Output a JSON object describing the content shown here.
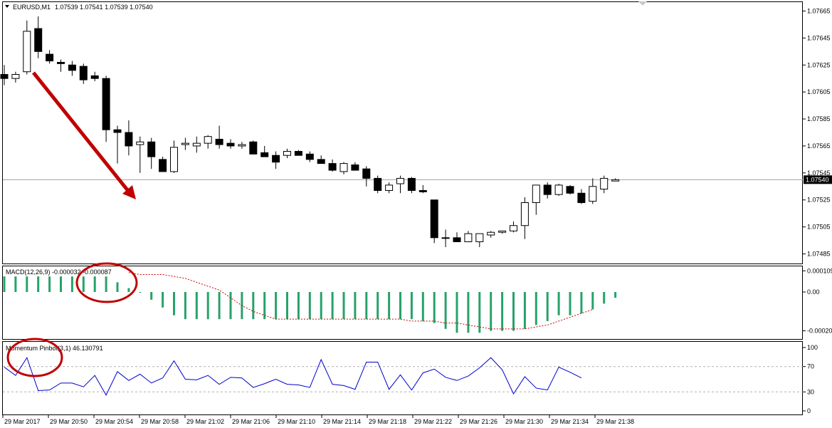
{
  "chart_data": [
    {
      "type": "candlestick",
      "header": {
        "symbol": "EURUSD,M1",
        "ohlc": "1.07539 1.07541 1.07539 1.07540"
      },
      "y_ticks": [
        "1.07665",
        "1.07645",
        "1.07625",
        "1.07605",
        "1.07585",
        "1.07565",
        "1.07545",
        "1.07525",
        "1.07505",
        "1.07485"
      ],
      "y_range": [
        1.0748,
        1.0767
      ],
      "current_price": 1.0754,
      "current_price_label": "1.07540",
      "candles": [
        {
          "o": 1.07618,
          "h": 1.07625,
          "l": 1.0761,
          "c": 1.07615
        },
        {
          "o": 1.07615,
          "h": 1.0762,
          "l": 1.07612,
          "c": 1.07618
        },
        {
          "o": 1.0762,
          "h": 1.07658,
          "l": 1.07618,
          "c": 1.0765
        },
        {
          "o": 1.07652,
          "h": 1.07661,
          "l": 1.0763,
          "c": 1.07635
        },
        {
          "o": 1.07633,
          "h": 1.07636,
          "l": 1.07626,
          "c": 1.07628
        },
        {
          "o": 1.07627,
          "h": 1.07629,
          "l": 1.0762,
          "c": 1.07626
        },
        {
          "o": 1.07625,
          "h": 1.07628,
          "l": 1.07617,
          "c": 1.07621
        },
        {
          "o": 1.07624,
          "h": 1.07626,
          "l": 1.07611,
          "c": 1.07614
        },
        {
          "o": 1.07617,
          "h": 1.0762,
          "l": 1.07613,
          "c": 1.07615
        },
        {
          "o": 1.07615,
          "h": 1.07617,
          "l": 1.07568,
          "c": 1.07577
        },
        {
          "o": 1.07577,
          "h": 1.0758,
          "l": 1.07552,
          "c": 1.07575
        },
        {
          "o": 1.07575,
          "h": 1.07584,
          "l": 1.07558,
          "c": 1.07565
        },
        {
          "o": 1.07566,
          "h": 1.07572,
          "l": 1.07545,
          "c": 1.07568
        },
        {
          "o": 1.07568,
          "h": 1.07571,
          "l": 1.07548,
          "c": 1.07557
        },
        {
          "o": 1.07555,
          "h": 1.07557,
          "l": 1.07546,
          "c": 1.07546
        },
        {
          "o": 1.07546,
          "h": 1.07569,
          "l": 1.07545,
          "c": 1.07564
        },
        {
          "o": 1.07566,
          "h": 1.07571,
          "l": 1.07562,
          "c": 1.07567
        },
        {
          "o": 1.07565,
          "h": 1.07572,
          "l": 1.0756,
          "c": 1.07567
        },
        {
          "o": 1.07567,
          "h": 1.07573,
          "l": 1.07563,
          "c": 1.07572
        },
        {
          "o": 1.0757,
          "h": 1.0758,
          "l": 1.07563,
          "c": 1.07566
        },
        {
          "o": 1.07567,
          "h": 1.0757,
          "l": 1.07563,
          "c": 1.07565
        },
        {
          "o": 1.07565,
          "h": 1.07568,
          "l": 1.07563,
          "c": 1.07566
        },
        {
          "o": 1.07568,
          "h": 1.07569,
          "l": 1.07559,
          "c": 1.07559
        },
        {
          "o": 1.0756,
          "h": 1.07565,
          "l": 1.07557,
          "c": 1.07557
        },
        {
          "o": 1.07558,
          "h": 1.07561,
          "l": 1.07548,
          "c": 1.07553
        },
        {
          "o": 1.07558,
          "h": 1.07563,
          "l": 1.07556,
          "c": 1.07561
        },
        {
          "o": 1.07561,
          "h": 1.07562,
          "l": 1.07558,
          "c": 1.07558
        },
        {
          "o": 1.07559,
          "h": 1.07561,
          "l": 1.07553,
          "c": 1.07555
        },
        {
          "o": 1.07555,
          "h": 1.07558,
          "l": 1.07552,
          "c": 1.07552
        },
        {
          "o": 1.07552,
          "h": 1.07555,
          "l": 1.07546,
          "c": 1.07547
        },
        {
          "o": 1.07546,
          "h": 1.07553,
          "l": 1.07544,
          "c": 1.07552
        },
        {
          "o": 1.07551,
          "h": 1.07553,
          "l": 1.07547,
          "c": 1.07547
        },
        {
          "o": 1.07548,
          "h": 1.0755,
          "l": 1.07535,
          "c": 1.07541
        },
        {
          "o": 1.07541,
          "h": 1.07543,
          "l": 1.0753,
          "c": 1.07532
        },
        {
          "o": 1.07532,
          "h": 1.07538,
          "l": 1.0753,
          "c": 1.07536
        },
        {
          "o": 1.07537,
          "h": 1.07543,
          "l": 1.0753,
          "c": 1.07541
        },
        {
          "o": 1.07541,
          "h": 1.07542,
          "l": 1.0753,
          "c": 1.07532
        },
        {
          "o": 1.07532,
          "h": 1.07536,
          "l": 1.0753,
          "c": 1.07531
        },
        {
          "o": 1.07525,
          "h": 1.07525,
          "l": 1.07493,
          "c": 1.07497
        },
        {
          "o": 1.07497,
          "h": 1.07503,
          "l": 1.0749,
          "c": 1.07497
        },
        {
          "o": 1.07497,
          "h": 1.07501,
          "l": 1.07494,
          "c": 1.07494
        },
        {
          "o": 1.07494,
          "h": 1.07502,
          "l": 1.07494,
          "c": 1.075
        },
        {
          "o": 1.07494,
          "h": 1.075,
          "l": 1.0749,
          "c": 1.075
        },
        {
          "o": 1.07499,
          "h": 1.07502,
          "l": 1.07497,
          "c": 1.07501
        },
        {
          "o": 1.07501,
          "h": 1.07502,
          "l": 1.075,
          "c": 1.07502
        },
        {
          "o": 1.07502,
          "h": 1.07509,
          "l": 1.07501,
          "c": 1.07506
        },
        {
          "o": 1.07506,
          "h": 1.07527,
          "l": 1.07496,
          "c": 1.07523
        },
        {
          "o": 1.07523,
          "h": 1.07536,
          "l": 1.07514,
          "c": 1.07536
        },
        {
          "o": 1.07536,
          "h": 1.07538,
          "l": 1.07526,
          "c": 1.07529
        },
        {
          "o": 1.07529,
          "h": 1.07537,
          "l": 1.07528,
          "c": 1.07536
        },
        {
          "o": 1.07535,
          "h": 1.07536,
          "l": 1.07529,
          "c": 1.0753
        },
        {
          "o": 1.0753,
          "h": 1.07533,
          "l": 1.07522,
          "c": 1.07523
        },
        {
          "o": 1.07524,
          "h": 1.07541,
          "l": 1.07522,
          "c": 1.07535
        },
        {
          "o": 1.07533,
          "h": 1.07543,
          "l": 1.0753,
          "c": 1.07541
        },
        {
          "o": 1.07539,
          "h": 1.07541,
          "l": 1.07539,
          "c": 1.0754
        }
      ]
    },
    {
      "type": "bar",
      "legend": "MACD(12,26,9) -0.000032 -0.000087",
      "y_ticks": [
        "0.000109",
        "0.00",
        "-0.00020"
      ],
      "y_range": [
        -0.00022,
        0.00011
      ],
      "histogram": [
        8e-05,
        8e-05,
        8e-05,
        8e-05,
        8e-05,
        8e-05,
        8e-05,
        8e-05,
        8e-05,
        8e-05,
        5e-05,
        2e-05,
        0.0,
        -4e-05,
        -8e-05,
        -0.00012,
        -0.00014,
        -0.00014,
        -0.00014,
        -0.00014,
        -0.00014,
        -0.00014,
        -0.00014,
        -0.00014,
        -0.00014,
        -0.00014,
        -0.00014,
        -0.00014,
        -0.00014,
        -0.00014,
        -0.00014,
        -0.00014,
        -0.00014,
        -0.00014,
        -0.00014,
        -0.00014,
        -0.00014,
        -0.00015,
        -0.00016,
        -0.00019,
        -0.00021,
        -0.00021,
        -0.00021,
        -0.0002,
        -0.0002,
        -0.0002,
        -0.00019,
        -0.00017,
        -0.00015,
        -0.00012,
        -0.00012,
        -0.00011,
        -9e-05,
        -6e-05,
        -3e-05
      ],
      "signal": [
        0.0001,
        9e-05,
        9e-05,
        9e-05,
        8e-05,
        7e-05,
        5e-05,
        3e-05,
        1e-05,
        -3e-05,
        -7e-05,
        -0.0001,
        -0.00012,
        -0.00014,
        -0.00014,
        -0.00014,
        -0.00014,
        -0.00014,
        -0.00014,
        -0.00014,
        -0.00014,
        -0.00014,
        -0.00014,
        -0.00014,
        -0.00014,
        -0.00015,
        -0.00015,
        -0.00015,
        -0.00016,
        -0.00016,
        -0.00017,
        -0.00018,
        -0.00019,
        -0.00019,
        -0.00019,
        -0.00019,
        -0.00018,
        -0.00017,
        -0.00015,
        -0.00013,
        -0.00011,
        -9e-05
      ],
      "colors": {
        "histogram": "#26a269",
        "signal": "#cc0000"
      }
    },
    {
      "type": "line",
      "legend": "Momentum Pinbot(3,1) 46.130791",
      "y_ticks": [
        "100",
        "70",
        "30",
        "0"
      ],
      "y_range": [
        0,
        100
      ],
      "levels": [
        70,
        30
      ],
      "values": [
        69,
        56,
        84,
        32,
        33,
        44,
        44,
        38,
        56,
        25,
        62,
        48,
        58,
        44,
        52,
        79,
        50,
        49,
        56,
        42,
        53,
        52,
        37,
        43,
        50,
        42,
        41,
        37,
        81,
        42,
        40,
        34,
        77,
        77,
        34,
        57,
        33,
        60,
        66,
        53,
        48,
        55,
        68,
        84,
        65,
        27,
        54,
        36,
        33,
        69,
        61,
        52
      ],
      "colors": {
        "line": "#0000cc"
      }
    }
  ],
  "x_ticks": [
    "29 Mar 2017",
    "29 Mar 20:50",
    "29 Mar 20:54",
    "29 Mar 20:58",
    "29 Mar 21:02",
    "29 Mar 21:06",
    "29 Mar 21:10",
    "29 Mar 21:14",
    "29 Mar 21:18",
    "29 Mar 21:22",
    "29 Mar 21:26",
    "29 Mar 21:30",
    "29 Mar 21:34",
    "29 Mar 21:38"
  ]
}
